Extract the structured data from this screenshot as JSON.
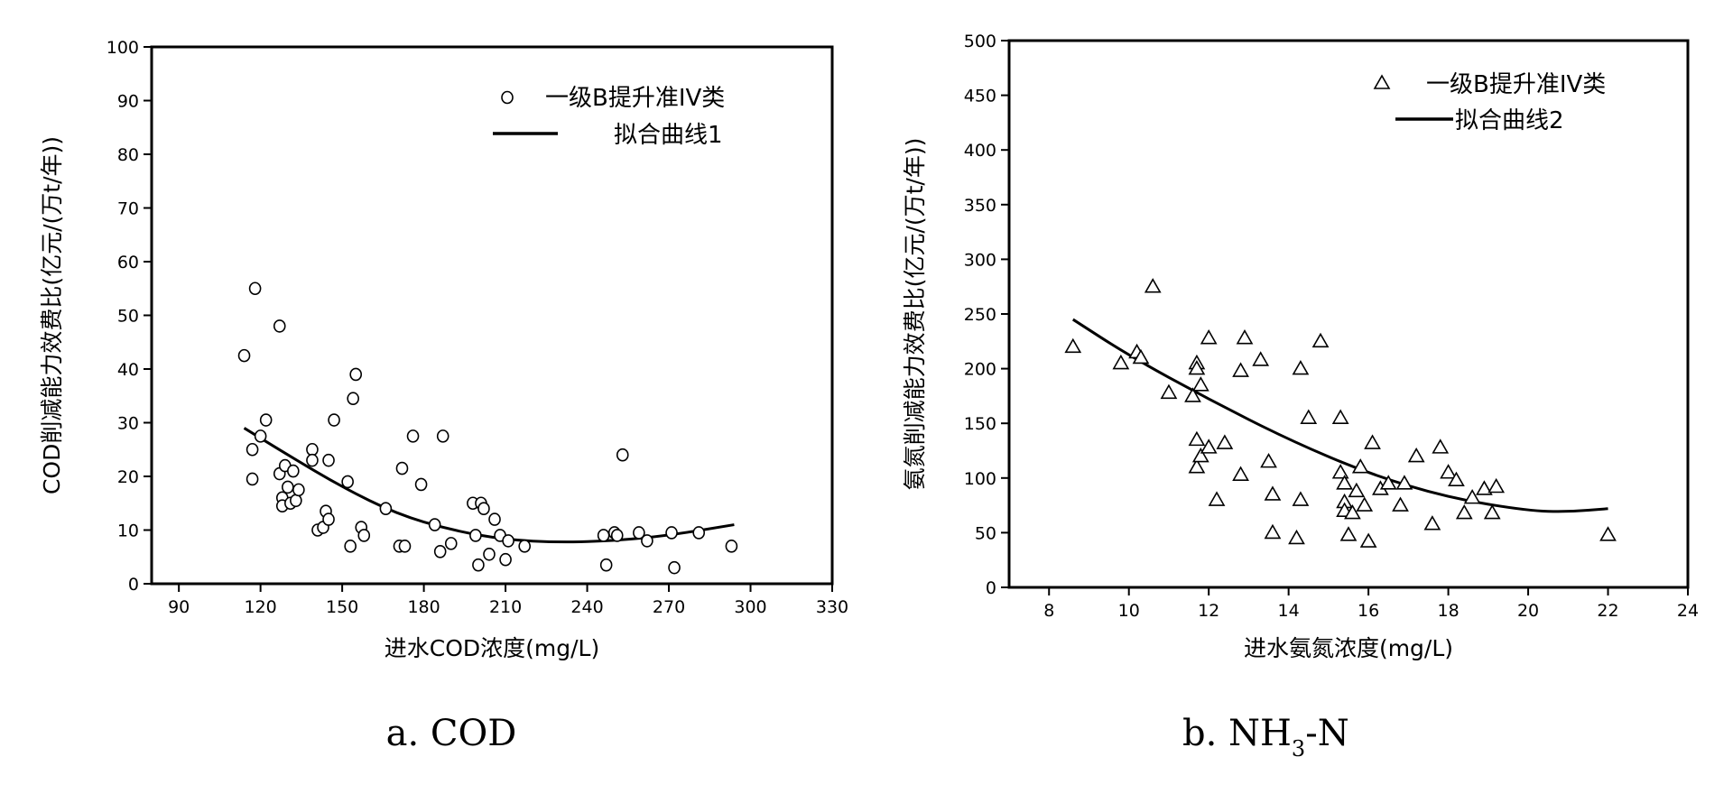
{
  "chart_data": [
    {
      "type": "scatter",
      "panel": "a",
      "caption": "a. COD",
      "xlabel": "进水COD浓度(mg/L)",
      "ylabel": "COD削减能力效费比(亿元/(万t/年))",
      "xlim": [
        80,
        330
      ],
      "ylim": [
        0,
        100
      ],
      "xticks": [
        90,
        120,
        150,
        180,
        210,
        240,
        270,
        300,
        330
      ],
      "yticks": [
        0,
        10,
        20,
        30,
        40,
        50,
        60,
        70,
        80,
        90,
        100
      ],
      "xtick_labels": [
        "90",
        "120",
        "150",
        "180",
        "210",
        "240",
        "270",
        "300",
        "330"
      ],
      "ytick_labels": [
        "0",
        "10",
        "20",
        "30",
        "40",
        "50",
        "60",
        "70",
        "80",
        "90",
        "100"
      ],
      "legend_position": "top-right",
      "series": [
        {
          "name": "一级B提升准IV类",
          "marker": "circle",
          "points": [
            [
              114,
              42.5
            ],
            [
              117,
              25
            ],
            [
              117,
              19.5
            ],
            [
              118,
              55
            ],
            [
              120,
              27.5
            ],
            [
              122,
              30.5
            ],
            [
              127,
              48
            ],
            [
              127,
              20.5
            ],
            [
              128,
              16
            ],
            [
              128,
              14.5
            ],
            [
              129,
              22
            ],
            [
              130,
              18
            ],
            [
              131,
              15
            ],
            [
              132,
              21
            ],
            [
              133,
              15.5
            ],
            [
              134,
              17.5
            ],
            [
              139,
              25
            ],
            [
              139,
              23
            ],
            [
              141,
              10
            ],
            [
              143,
              10.5
            ],
            [
              144,
              13.5
            ],
            [
              145,
              23
            ],
            [
              145,
              12
            ],
            [
              147,
              30.5
            ],
            [
              152,
              19
            ],
            [
              153,
              7
            ],
            [
              154,
              34.5
            ],
            [
              155,
              39
            ],
            [
              157,
              10.5
            ],
            [
              158,
              9
            ],
            [
              166,
              14
            ],
            [
              171,
              7
            ],
            [
              172,
              21.5
            ],
            [
              173,
              7
            ],
            [
              176,
              27.5
            ],
            [
              179,
              18.5
            ],
            [
              184,
              11
            ],
            [
              186,
              6
            ],
            [
              187,
              27.5
            ],
            [
              190,
              7.5
            ],
            [
              198,
              15
            ],
            [
              199,
              9
            ],
            [
              200,
              3.5
            ],
            [
              201,
              15
            ],
            [
              202,
              14
            ],
            [
              204,
              5.5
            ],
            [
              206,
              12
            ],
            [
              208,
              9
            ],
            [
              210,
              4.5
            ],
            [
              211,
              8
            ],
            [
              217,
              7
            ],
            [
              246,
              9
            ],
            [
              247,
              3.5
            ],
            [
              250,
              9.5
            ],
            [
              251,
              9
            ],
            [
              253,
              24
            ],
            [
              259,
              9.5
            ],
            [
              262,
              8
            ],
            [
              271,
              9.5
            ],
            [
              272,
              3
            ],
            [
              281,
              9.5
            ],
            [
              293,
              7
            ]
          ]
        },
        {
          "name": "拟合曲线1",
          "marker": "line",
          "points": [
            [
              114,
              29
            ],
            [
              130,
              24
            ],
            [
              150,
              18
            ],
            [
              170,
              13
            ],
            [
              190,
              10
            ],
            [
              210,
              8.2
            ],
            [
              230,
              7.7
            ],
            [
              250,
              8
            ],
            [
              270,
              9
            ],
            [
              294,
              11
            ]
          ]
        }
      ]
    },
    {
      "type": "scatter",
      "panel": "b",
      "caption_main": "b.  NH",
      "caption_sub": "3",
      "caption_tail": "-N",
      "xlabel": "进水氨氮浓度(mg/L)",
      "ylabel": "氨氮削减能力效费比(亿元/(万t/年))",
      "xlim": [
        7,
        24
      ],
      "ylim": [
        0,
        500
      ],
      "xticks": [
        8,
        10,
        12,
        14,
        16,
        18,
        20,
        22,
        24
      ],
      "yticks": [
        0,
        50,
        100,
        150,
        200,
        250,
        300,
        350,
        400,
        450,
        500
      ],
      "xtick_labels": [
        "8",
        "10",
        "12",
        "14",
        "16",
        "18",
        "20",
        "22",
        "24"
      ],
      "ytick_labels": [
        "0",
        "50",
        "100",
        "150",
        "200",
        "250",
        "300",
        "350",
        "400",
        "450",
        "500"
      ],
      "legend_position": "top-right",
      "series": [
        {
          "name": "一级B提升准IV类",
          "marker": "triangle",
          "points": [
            [
              8.6,
              220
            ],
            [
              9.8,
              205
            ],
            [
              10.2,
              215
            ],
            [
              10.3,
              210
            ],
            [
              10.6,
              275
            ],
            [
              11,
              178
            ],
            [
              11.6,
              175
            ],
            [
              11.7,
              205
            ],
            [
              11.7,
              200
            ],
            [
              11.7,
              135
            ],
            [
              11.7,
              110
            ],
            [
              11.8,
              185
            ],
            [
              11.8,
              120
            ],
            [
              12,
              228
            ],
            [
              12,
              128
            ],
            [
              12.2,
              80
            ],
            [
              12.4,
              132
            ],
            [
              12.8,
              198
            ],
            [
              12.8,
              103
            ],
            [
              12.9,
              228
            ],
            [
              13.3,
              208
            ],
            [
              13.5,
              115
            ],
            [
              13.6,
              85
            ],
            [
              13.6,
              50
            ],
            [
              14.2,
              45
            ],
            [
              14.3,
              80
            ],
            [
              14.3,
              200
            ],
            [
              14.5,
              155
            ],
            [
              14.8,
              225
            ],
            [
              15.3,
              155
            ],
            [
              15.3,
              105
            ],
            [
              15.4,
              95
            ],
            [
              15.4,
              78
            ],
            [
              15.4,
              70
            ],
            [
              15.5,
              48
            ],
            [
              15.6,
              68
            ],
            [
              15.7,
              88
            ],
            [
              15.8,
              110
            ],
            [
              15.9,
              75
            ],
            [
              16,
              42
            ],
            [
              16.1,
              132
            ],
            [
              16.3,
              90
            ],
            [
              16.5,
              95
            ],
            [
              16.8,
              75
            ],
            [
              16.9,
              95
            ],
            [
              17.2,
              120
            ],
            [
              17.6,
              58
            ],
            [
              17.8,
              128
            ],
            [
              18,
              105
            ],
            [
              18.2,
              98
            ],
            [
              18.4,
              68
            ],
            [
              18.6,
              82
            ],
            [
              18.9,
              90
            ],
            [
              19.1,
              68
            ],
            [
              19.2,
              92
            ],
            [
              22,
              48
            ]
          ]
        },
        {
          "name": "拟合曲线2",
          "marker": "line",
          "points": [
            [
              8.6,
              245
            ],
            [
              10,
              212
            ],
            [
              12,
              172
            ],
            [
              14,
              135
            ],
            [
              16,
              104
            ],
            [
              18,
              82
            ],
            [
              20,
              70
            ],
            [
              21,
              69
            ],
            [
              22,
              72
            ]
          ]
        }
      ]
    }
  ]
}
